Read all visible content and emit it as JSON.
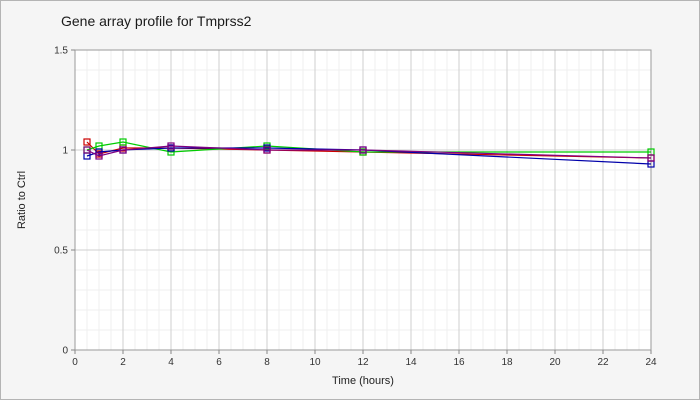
{
  "chart_data": {
    "type": "line",
    "title": "Gene array profile for Tmprss2",
    "xlabel": "Time (hours)",
    "ylabel": "Ratio to Ctrl",
    "xlim": [
      0,
      24
    ],
    "ylim": [
      0,
      1.5
    ],
    "x_ticks": [
      "0",
      "2",
      "4",
      "6",
      "8",
      "10",
      "12",
      "14",
      "16",
      "18",
      "20",
      "22",
      "24"
    ],
    "y_ticks": [
      "0",
      "0.5",
      "1",
      "1.5"
    ],
    "grid": true,
    "legend": "none",
    "series": [
      {
        "color": "#cc0000",
        "x": [
          0.5,
          1,
          2,
          4,
          8,
          12,
          24
        ],
        "y": [
          1.04,
          0.98,
          1.01,
          1.01,
          1.0,
          0.99,
          0.96
        ]
      },
      {
        "color": "#00cc00",
        "x": [
          0.5,
          1,
          2,
          4,
          8,
          12,
          24
        ],
        "y": [
          1.0,
          1.02,
          1.04,
          0.99,
          1.02,
          0.99,
          0.99
        ]
      },
      {
        "color": "#0000aa",
        "x": [
          0.5,
          1,
          2,
          4,
          8,
          12,
          24
        ],
        "y": [
          0.97,
          0.99,
          1.0,
          1.01,
          1.01,
          1.0,
          0.93
        ]
      },
      {
        "color": "#800080",
        "x": [
          0.5,
          1,
          2,
          4,
          8,
          12,
          24
        ],
        "y": [
          1.0,
          0.97,
          1.0,
          1.02,
          1.0,
          1.0,
          0.96
        ]
      }
    ]
  }
}
